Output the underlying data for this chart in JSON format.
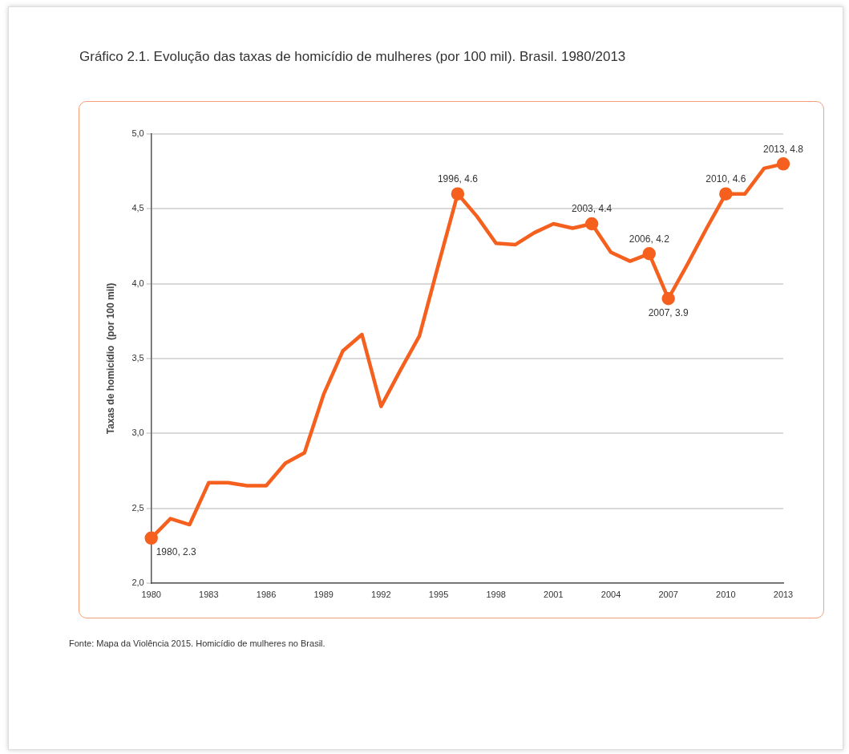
{
  "chart_data": {
    "type": "line",
    "title": "Gráfico 2.1. Evolução das taxas de homicídio de mulheres (por 100 mil). Brasil. 1980/2013",
    "ylabel": "Taxas de homicídio  (por 100 mil)",
    "annotations": [
      "Fonte: Mapa da Violência 2015. Homicídio de mulheres no Brasil."
    ],
    "categories": [
      "1980",
      null,
      null,
      "1983",
      null,
      null,
      "1986",
      null,
      null,
      "1989",
      null,
      null,
      "1992",
      null,
      null,
      "1995",
      null,
      null,
      "1998",
      null,
      null,
      "2001",
      null,
      null,
      "2004",
      null,
      null,
      "2007",
      null,
      null,
      "2010",
      null,
      null,
      "2013"
    ],
    "series": [
      {
        "color": "#f5601e",
        "values": [
          2.3,
          2.43,
          2.39,
          2.67,
          2.67,
          2.65,
          2.65,
          2.8,
          2.87,
          3.26,
          3.55,
          3.66,
          3.18,
          3.42,
          3.65,
          4.13,
          4.6,
          4.45,
          4.27,
          4.26,
          4.34,
          4.4,
          4.37,
          4.4,
          4.21,
          4.15,
          4.2,
          3.9,
          4.13,
          4.37,
          4.6,
          4.6,
          4.77,
          4.8
        ],
        "value_labels": [
          "1980, 2.3",
          null,
          null,
          null,
          null,
          null,
          null,
          null,
          null,
          null,
          null,
          null,
          null,
          null,
          null,
          null,
          "1996, 4.6",
          null,
          null,
          null,
          null,
          null,
          null,
          "2003, 4.4",
          null,
          null,
          "2006, 4.2",
          "2007, 3.9",
          null,
          null,
          "2010, 4.6",
          null,
          null,
          "2013, 4.8"
        ]
      }
    ],
    "ylim": [
      2.0,
      5.0
    ],
    "yticks": [
      {
        "value": 2,
        "label": "2,0"
      },
      {
        "value": 2.5,
        "label": "2,5"
      },
      {
        "value": 3,
        "label": "3,0"
      },
      {
        "value": 3.5,
        "label": "3,5"
      },
      {
        "value": 4,
        "label": "4,0"
      },
      {
        "value": 4.5,
        "label": "4,5"
      },
      {
        "value": 5,
        "label": "5,0"
      }
    ],
    "grid": "y",
    "legend": false,
    "line_style": "solid"
  }
}
